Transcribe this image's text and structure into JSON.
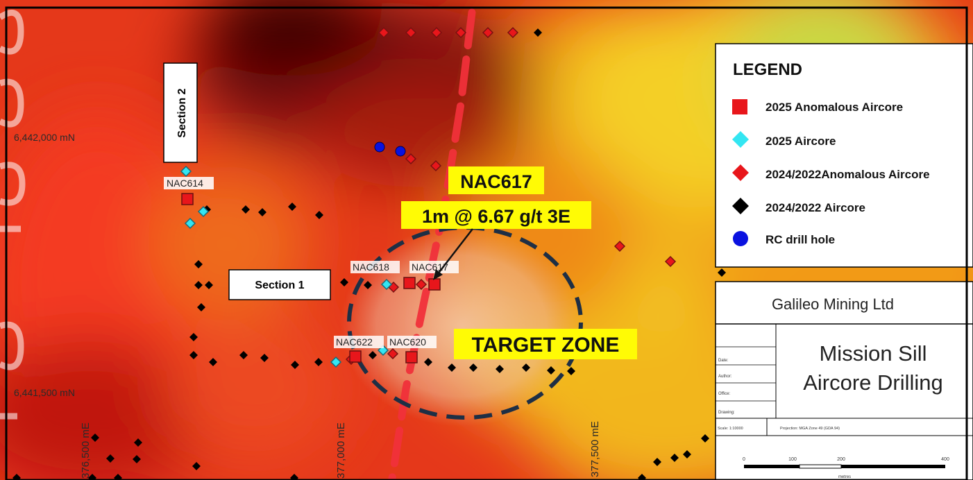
{
  "grid": {
    "northing_upper": "6,442,000 mN",
    "northing_lower": "6,441,500 mN",
    "easting_1": "376,500 mE",
    "easting_2": "377,000 mE",
    "easting_3": "377,500 mE"
  },
  "sections": {
    "section_2": "Section 2",
    "section_1": "Section 1"
  },
  "holes": {
    "nac614": "NAC614",
    "nac618": "NAC618",
    "nac617": "NAC617",
    "nac622": "NAC622",
    "nac620": "NAC620"
  },
  "callout": {
    "hole": "NAC617",
    "result": "1m @ 6.67 g/t 3E"
  },
  "target_zone": "TARGET ZONE",
  "legend": {
    "title": "LEGEND",
    "items": [
      {
        "label": "2025 Anomalous Aircore",
        "symbol": "square",
        "color": "#e8161b"
      },
      {
        "label": "2025 Aircore",
        "symbol": "diamond",
        "color": "#33e6f2"
      },
      {
        "label": "2024/2022Anomalous Aircore",
        "symbol": "diamond",
        "color": "#e8161b"
      },
      {
        "label": "2024/2022 Aircore",
        "symbol": "diamond",
        "color": "#000000"
      },
      {
        "label": "RC drill hole",
        "symbol": "circle",
        "color": "#0a12e0"
      }
    ]
  },
  "title_block": {
    "company": "Galileo Mining Ltd",
    "title_line1": "Mission Sill",
    "title_line2": "Aircore Drilling",
    "fields": [
      "Date:",
      "Author:",
      "Office:",
      "Drawing:"
    ],
    "scale_text": "Scale: 1:10000",
    "projection_text": "Projection: MGA Zone 49 (GDA 94)",
    "scalebar_ticks": [
      "0",
      "100",
      "200",
      "400"
    ],
    "scalebar_unit": "metres"
  }
}
